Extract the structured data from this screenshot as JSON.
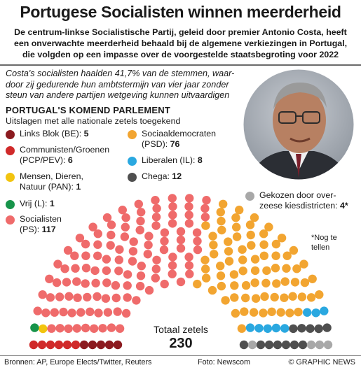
{
  "header": {
    "title": "Portugese Socialisten winnen meerderheid",
    "subtitle_lines": [
      "De centrum-linkse Socialistische Partij, geleid door premier Antonio Costa, heeft",
      "een onverwachte meerderheid behaald bij de algemene verkiezingen in Portugal,",
      "die volgden op een impasse over de voorgestelde staatsbegroting voor 2022"
    ]
  },
  "intro_lines": [
    "Costa's socialisten haalden 41,7% van de stemmen, waar-",
    "door zij gedurende hun ambtstermijn van vier jaar zonder",
    "steun van andere partijen wetgeving kunnen uitvaardigen"
  ],
  "section": {
    "title": "PORTUGAL'S KOMEND PARLEMENT",
    "subtitle": "Uitslagen met alle nationale zetels toegekend"
  },
  "legend": {
    "be": {
      "lines": [
        "Links Blok (BE): "
      ],
      "value": "5",
      "color": "#8b1a1f"
    },
    "cdu": {
      "lines": [
        "Communisten/Groenen",
        "(PCP/PEV): "
      ],
      "value": "6",
      "color": "#d02a2a"
    },
    "pan": {
      "lines": [
        "Mensen, Dieren,",
        "Natuur (PAN): "
      ],
      "value": "1",
      "color": "#f2c40f"
    },
    "l": {
      "lines": [
        "Vrij (L): "
      ],
      "value": "1",
      "color": "#17944a"
    },
    "ps": {
      "lines": [
        "Socialisten",
        "(PS): "
      ],
      "value": "117",
      "color": "#ef6b6b"
    },
    "psd": {
      "lines": [
        "Sociaaldemocraten",
        "(PSD): "
      ],
      "value": "76",
      "color": "#f2a531"
    },
    "il": {
      "lines": [
        "Liberalen (IL): "
      ],
      "value": "8",
      "color": "#2aa8e0"
    },
    "ch": {
      "lines": [
        "Chega: "
      ],
      "value": "12",
      "color": "#4f4f4f"
    },
    "abroad": {
      "lines": [
        "Gekozen door over-",
        "zeese kiesdistricten: "
      ],
      "value": "4*",
      "color": "#a8a8a8"
    }
  },
  "note": [
    "*Nog te",
    "tellen"
  ],
  "total": {
    "label": "Totaal zetels",
    "value": "230"
  },
  "footer": {
    "sources": "Bronnen: AP, Europe Elects/Twitter, Reuters",
    "photo": "Foto: Newscom",
    "copyright": "© GRAPHIC NEWS"
  },
  "chart_data": {
    "type": "parliament",
    "title": "PORTUGAL'S KOMEND PARLEMENT",
    "subtitle": "Uitslagen met alle nationale zetels toegekend",
    "total_seats": 230,
    "series": [
      {
        "name": "Links Blok (BE)",
        "value": 5,
        "color": "#8b1a1f"
      },
      {
        "name": "Communisten/Groenen (PCP/PEV)",
        "value": 6,
        "color": "#d02a2a"
      },
      {
        "name": "Mensen, Dieren, Natuur (PAN)",
        "value": 1,
        "color": "#f2c40f"
      },
      {
        "name": "Vrij (L)",
        "value": 1,
        "color": "#17944a"
      },
      {
        "name": "Socialisten (PS)",
        "value": 117,
        "color": "#ef6b6b"
      },
      {
        "name": "Sociaaldemocraten (PSD)",
        "value": 76,
        "color": "#f2a531"
      },
      {
        "name": "Liberalen (IL)",
        "value": 8,
        "color": "#2aa8e0"
      },
      {
        "name": "Chega",
        "value": 12,
        "color": "#4f4f4f"
      },
      {
        "name": "Gekozen door overzeese kiesdistricten",
        "value": 4,
        "color": "#a8a8a8"
      }
    ]
  }
}
